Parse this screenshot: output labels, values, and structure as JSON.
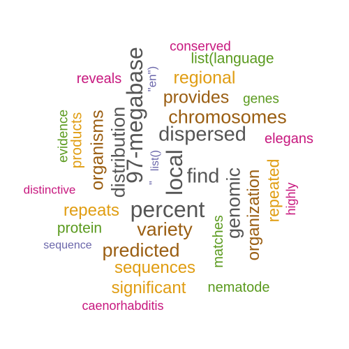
{
  "colors": {
    "magenta": "#c7177e",
    "green": "#5a9a1e",
    "orange": "#e09d12",
    "brown": "#9a5e12",
    "gray": "#555555",
    "purple": "#6a66aa"
  },
  "words": [
    {
      "text": "conserved",
      "color": "#c7177e"
    },
    {
      "text": "list(language",
      "color": "#5a9a1e"
    },
    {
      "text": "reveals",
      "color": "#c7177e"
    },
    {
      "text": "regional",
      "color": "#e09d12"
    },
    {
      "text": "\"en\")",
      "color": "#6a66aa"
    },
    {
      "text": "97-megabase",
      "color": "#555555"
    },
    {
      "text": "provides",
      "color": "#9a5e12"
    },
    {
      "text": "genes",
      "color": "#5a9a1e"
    },
    {
      "text": "chromosomes",
      "color": "#9a5e12"
    },
    {
      "text": "evidence",
      "color": "#5a9a1e"
    },
    {
      "text": "products",
      "color": "#e09d12"
    },
    {
      "text": "organisms",
      "color": "#9a5e12"
    },
    {
      "text": "distribution",
      "color": "#555555"
    },
    {
      "text": "dispersed",
      "color": "#555555"
    },
    {
      "text": "elegans",
      "color": "#c7177e"
    },
    {
      "text": "list()",
      "color": "#6a66aa"
    },
    {
      "text": "local",
      "color": "#555555"
    },
    {
      "text": "\"",
      "color": "#6a66aa"
    },
    {
      "text": "find",
      "color": "#555555"
    },
    {
      "text": "genomic",
      "color": "#555555"
    },
    {
      "text": "organization",
      "color": "#9a5e12"
    },
    {
      "text": "repeated",
      "color": "#e09d12"
    },
    {
      "text": "highly",
      "color": "#c7177e"
    },
    {
      "text": "distinctive",
      "color": "#c7177e"
    },
    {
      "text": "repeats",
      "color": "#e09d12"
    },
    {
      "text": "percent",
      "color": "#555555"
    },
    {
      "text": "protein",
      "color": "#5a9a1e"
    },
    {
      "text": "variety",
      "color": "#9a5e12"
    },
    {
      "text": "matches",
      "color": "#5a9a1e"
    },
    {
      "text": "sequence",
      "color": "#6a66aa"
    },
    {
      "text": "predicted",
      "color": "#9a5e12"
    },
    {
      "text": "sequences",
      "color": "#e09d12"
    },
    {
      "text": "significant",
      "color": "#e09d12"
    },
    {
      "text": "nematode",
      "color": "#5a9a1e"
    },
    {
      "text": "caenorhabditis",
      "color": "#c7177e"
    }
  ]
}
